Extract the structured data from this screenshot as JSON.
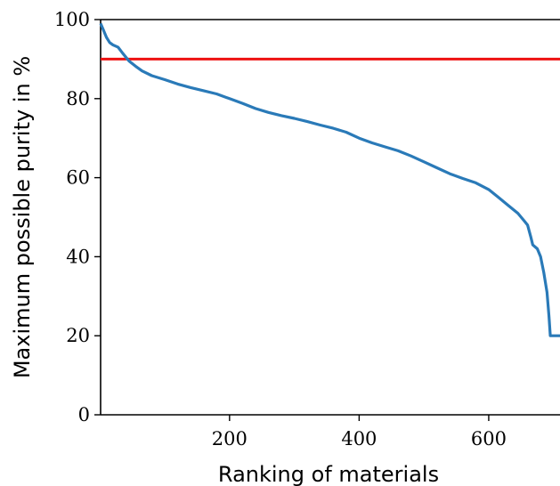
{
  "chart_data": {
    "type": "line",
    "xlabel": "Ranking of materials",
    "ylabel": "Maximum possible purity in %",
    "xlim": [
      1,
      710
    ],
    "ylim": [
      0,
      100
    ],
    "xticks": [
      200,
      400,
      600
    ],
    "yticks": [
      0,
      20,
      40,
      60,
      80,
      100
    ],
    "legend": "none",
    "grid": false,
    "reference_line": {
      "y": 90,
      "color": "#ee1111"
    },
    "series": [
      {
        "color": "#2a7ab8",
        "points": [
          [
            1,
            99
          ],
          [
            5,
            97.5
          ],
          [
            10,
            95.5
          ],
          [
            15,
            94.2
          ],
          [
            20,
            93.6
          ],
          [
            28,
            93
          ],
          [
            35,
            91.5
          ],
          [
            45,
            89.5
          ],
          [
            55,
            88.2
          ],
          [
            65,
            87
          ],
          [
            80,
            85.8
          ],
          [
            100,
            84.8
          ],
          [
            120,
            83.7
          ],
          [
            140,
            82.8
          ],
          [
            160,
            82
          ],
          [
            180,
            81.2
          ],
          [
            200,
            80
          ],
          [
            220,
            78.8
          ],
          [
            240,
            77.5
          ],
          [
            260,
            76.5
          ],
          [
            280,
            75.7
          ],
          [
            300,
            75
          ],
          [
            320,
            74.2
          ],
          [
            340,
            73.3
          ],
          [
            360,
            72.5
          ],
          [
            380,
            71.5
          ],
          [
            400,
            70
          ],
          [
            420,
            68.8
          ],
          [
            440,
            67.8
          ],
          [
            460,
            66.8
          ],
          [
            480,
            65.5
          ],
          [
            500,
            64
          ],
          [
            520,
            62.5
          ],
          [
            540,
            61
          ],
          [
            560,
            59.8
          ],
          [
            580,
            58.7
          ],
          [
            600,
            57
          ],
          [
            615,
            55
          ],
          [
            630,
            53
          ],
          [
            645,
            51
          ],
          [
            655,
            49
          ],
          [
            660,
            48
          ],
          [
            665,
            45
          ],
          [
            668,
            43
          ],
          [
            675,
            42
          ],
          [
            680,
            40
          ],
          [
            685,
            36
          ],
          [
            690,
            31
          ],
          [
            693,
            25
          ],
          [
            695,
            20
          ],
          [
            710,
            20
          ]
        ]
      }
    ]
  }
}
